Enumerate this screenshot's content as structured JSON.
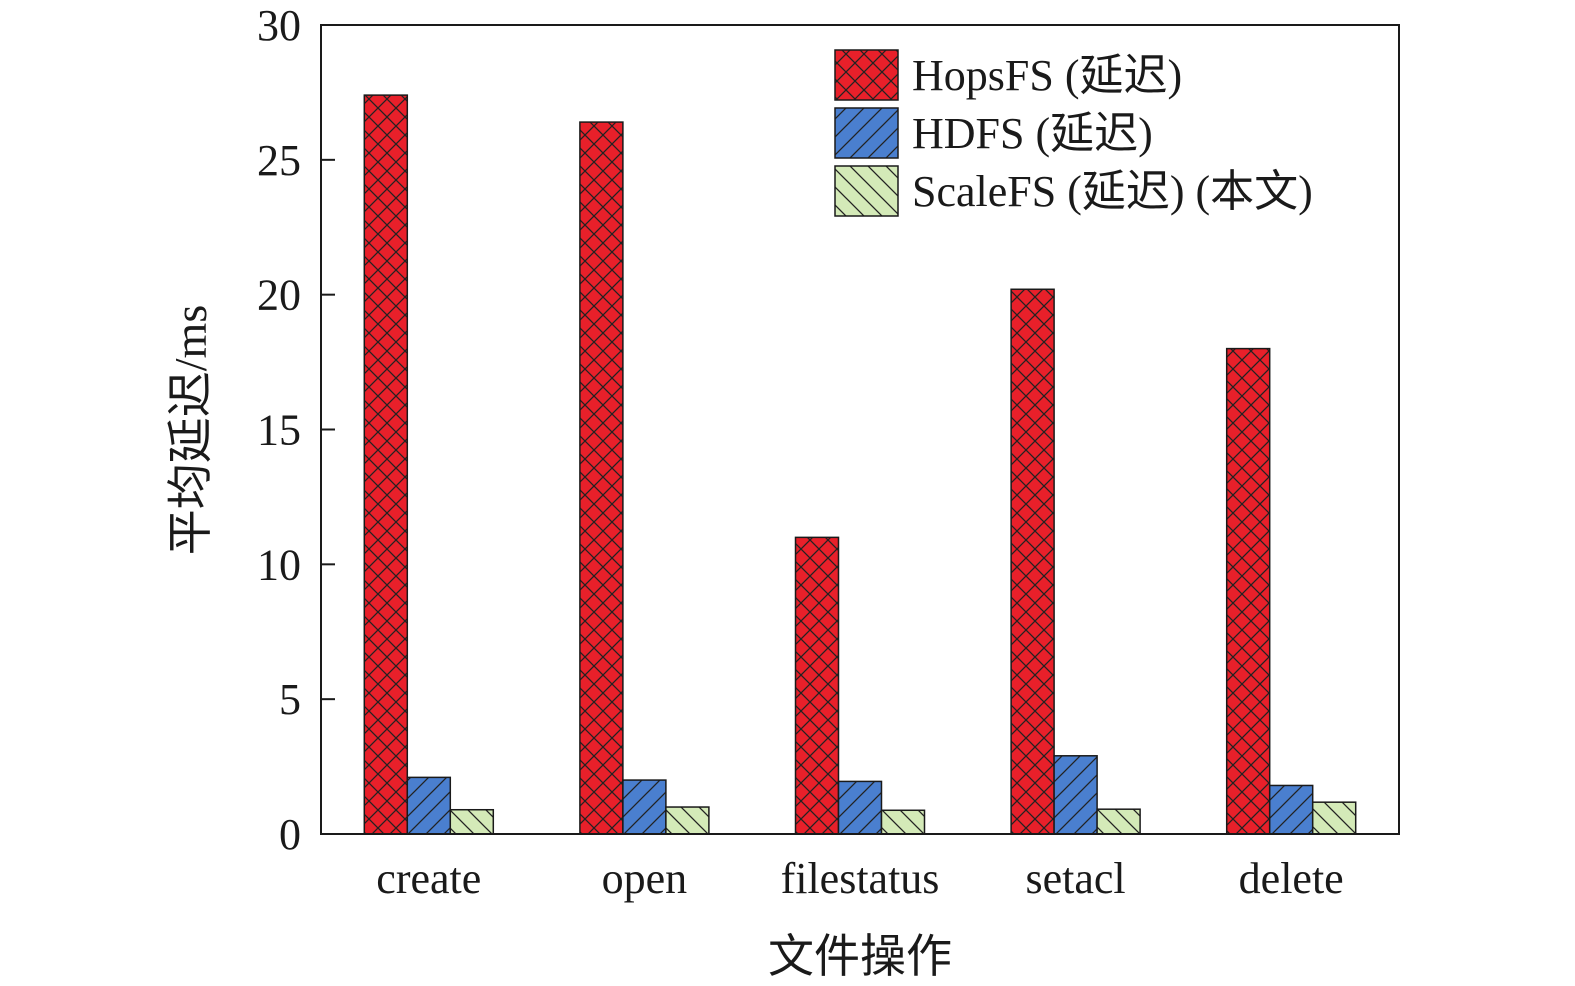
{
  "chart_data": {
    "type": "bar",
    "title": "",
    "xlabel": "文件操作",
    "ylabel": "平均延迟/ms",
    "ylim": [
      0,
      30
    ],
    "yticks": [
      0,
      5,
      10,
      15,
      20,
      25,
      30
    ],
    "grid": false,
    "legend_position": "top-right",
    "categories": [
      "create",
      "open",
      "filestatus",
      "setacl",
      "delete"
    ],
    "series": [
      {
        "name": "HopsFS (延迟)",
        "values": [
          27.4,
          26.4,
          11.0,
          20.2,
          18.0
        ],
        "color": "#e8202a",
        "pattern": "crosshatch"
      },
      {
        "name": "HDFS (延迟)",
        "values": [
          2.1,
          2.0,
          1.95,
          2.9,
          1.8
        ],
        "color": "#4a7fcf",
        "pattern": "forward-diagonal"
      },
      {
        "name": "ScaleFS (延迟) (本文)",
        "values": [
          0.9,
          1.0,
          0.88,
          0.92,
          1.18
        ],
        "color": "#d4eab8",
        "pattern": "back-diagonal"
      }
    ]
  }
}
